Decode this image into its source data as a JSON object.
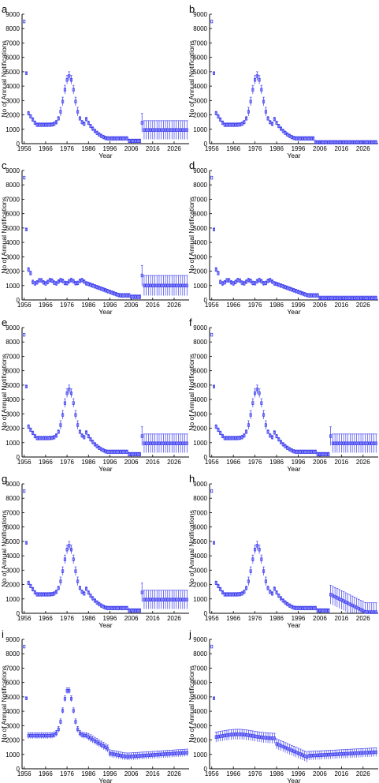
{
  "chart_data": [
    {
      "panel": "a",
      "type": "scatter",
      "variant": "full",
      "xlabel": "Year",
      "ylabel": "No of Annual Notifications",
      "xticks": [
        "1956",
        "1966",
        "1976",
        "1986",
        "1996",
        "2006",
        "2016",
        "2026"
      ],
      "yticks": [
        0,
        1000,
        2000,
        3000,
        4000,
        5000,
        6000,
        7000,
        8000,
        9000
      ],
      "xlim": [
        1955,
        2033
      ],
      "ylim": [
        0,
        9000
      ]
    },
    {
      "panel": "b",
      "type": "scatter",
      "variant": "decline",
      "xlabel": "Year",
      "ylabel": "No of Annual Notifications",
      "xticks": [
        "1956",
        "1966",
        "1976",
        "1986",
        "1996",
        "2006",
        "2016",
        "2026"
      ],
      "yticks": [
        0,
        1000,
        2000,
        3000,
        4000,
        5000,
        6000,
        7000,
        8000,
        9000
      ],
      "xlim": [
        1955,
        2033
      ],
      "ylim": [
        0,
        9000
      ]
    },
    {
      "panel": "c",
      "type": "scatter",
      "variant": "flat",
      "xlabel": "Year",
      "ylabel": "No of Annual Notifications",
      "xticks": [
        "1956",
        "1966",
        "1976",
        "1986",
        "1996",
        "2006",
        "2016",
        "2026"
      ],
      "yticks": [
        0,
        1000,
        2000,
        3000,
        4000,
        5000,
        6000,
        7000,
        8000,
        9000
      ],
      "xlim": [
        1955,
        2033
      ],
      "ylim": [
        0,
        9000
      ]
    },
    {
      "panel": "d",
      "type": "scatter",
      "variant": "flatdecline",
      "xlabel": "Year",
      "ylabel": "No of Annual Notifications",
      "xticks": [
        "1956",
        "1966",
        "1976",
        "1986",
        "1996",
        "2006",
        "2016",
        "2026"
      ],
      "yticks": [
        0,
        1000,
        2000,
        3000,
        4000,
        5000,
        6000,
        7000,
        8000,
        9000
      ],
      "xlim": [
        1955,
        2033
      ],
      "ylim": [
        0,
        9000
      ]
    },
    {
      "panel": "e",
      "type": "scatter",
      "variant": "full",
      "xlabel": "Year",
      "ylabel": "No of Annual Notifications",
      "xticks": [
        "1956",
        "1966",
        "1976",
        "1986",
        "1996",
        "2006",
        "2016",
        "2026"
      ],
      "yticks": [
        0,
        1000,
        2000,
        3000,
        4000,
        5000,
        6000,
        7000,
        8000,
        9000
      ],
      "xlim": [
        1955,
        2033
      ],
      "ylim": [
        0,
        9000
      ]
    },
    {
      "panel": "f",
      "type": "scatter",
      "variant": "full",
      "xlabel": "Year",
      "ylabel": "No of Annual Notifications",
      "xticks": [
        "1956",
        "1966",
        "1976",
        "1986",
        "1996",
        "2006",
        "2016",
        "2026"
      ],
      "yticks": [
        0,
        1000,
        2000,
        3000,
        4000,
        5000,
        6000,
        7000,
        8000,
        9000
      ],
      "xlim": [
        1955,
        2033
      ],
      "ylim": [
        0,
        9000
      ]
    },
    {
      "panel": "g",
      "type": "scatter",
      "variant": "full",
      "xlabel": "Year",
      "ylabel": "No of Annual Notifications",
      "xticks": [
        "1956",
        "1966",
        "1976",
        "1986",
        "1996",
        "2006",
        "2016",
        "2026"
      ],
      "yticks": [
        0,
        1000,
        2000,
        3000,
        4000,
        5000,
        6000,
        7000,
        8000,
        9000
      ],
      "xlim": [
        1955,
        2033
      ],
      "ylim": [
        0,
        9000
      ]
    },
    {
      "panel": "h",
      "type": "scatter",
      "variant": "fulldecline",
      "xlabel": "Year",
      "ylabel": "No of Annual Notifications",
      "xticks": [
        "1956",
        "1966",
        "1976",
        "1986",
        "1996",
        "2006",
        "2016",
        "2026"
      ],
      "yticks": [
        0,
        1000,
        2000,
        3000,
        4000,
        5000,
        6000,
        7000,
        8000,
        9000
      ],
      "xlim": [
        1955,
        2033
      ],
      "ylim": [
        0,
        9000
      ]
    },
    {
      "panel": "i",
      "type": "scatter",
      "variant": "peak_i",
      "xlabel": "Year",
      "ylabel": "No of Annual Notifications",
      "xticks": [
        "1956",
        "1966",
        "1976",
        "1986",
        "1996",
        "2006",
        "2016",
        "2026"
      ],
      "yticks": [
        0,
        1000,
        2000,
        3000,
        4000,
        5000,
        6000,
        7000,
        8000,
        9000
      ],
      "xlim": [
        1955,
        2033
      ],
      "ylim": [
        0,
        9000
      ]
    },
    {
      "panel": "j",
      "type": "scatter",
      "variant": "flat_j",
      "xlabel": "Year",
      "ylabel": "No of Annual Notifications",
      "xticks": [
        "1956",
        "1966",
        "1976",
        "1986",
        "1996",
        "2006",
        "2016",
        "2026"
      ],
      "yticks": [
        0,
        1000,
        2000,
        3000,
        4000,
        5000,
        6000,
        7000,
        8000,
        9000
      ],
      "xlim": [
        1955,
        2033
      ],
      "ylim": [
        0,
        9000
      ]
    }
  ],
  "colors": {
    "marker": "#3c3cf0",
    "axis": "#000000"
  }
}
